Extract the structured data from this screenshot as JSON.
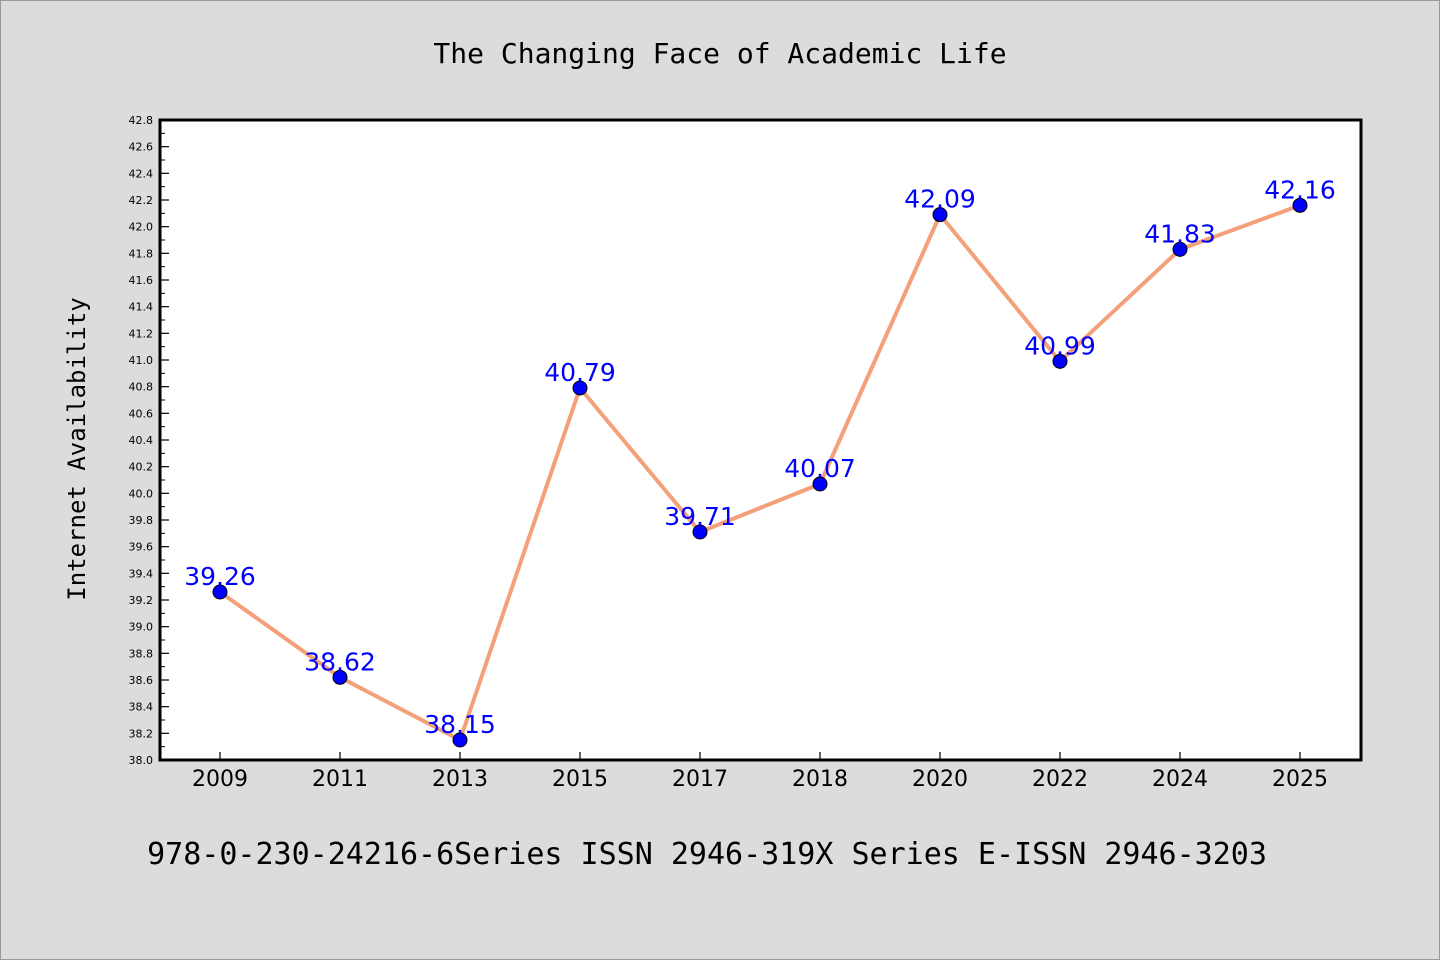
{
  "chart_data": {
    "type": "line",
    "title": "The Changing Face of Academic Life",
    "xlabel": "",
    "ylabel": "Internet Availability",
    "categories": [
      "2009",
      "2011",
      "2013",
      "2015",
      "2017",
      "2018",
      "2020",
      "2022",
      "2024",
      "2025"
    ],
    "series": [
      {
        "values": [
          39.26,
          38.62,
          38.15,
          40.79,
          39.71,
          40.07,
          42.09,
          40.99,
          41.83,
          42.16
        ],
        "labels": [
          "39.26",
          "38.62",
          "38.15",
          "40.79",
          "39.71",
          "40.07",
          "42.09",
          "40.99",
          "41.83",
          "42.16"
        ]
      }
    ],
    "ylim": [
      38.0,
      42.8
    ],
    "yticks": [
      "38.0",
      "38.2",
      "38.4",
      "38.6",
      "38.8",
      "39.0",
      "39.2",
      "39.4",
      "39.6",
      "39.8",
      "40.0",
      "40.2",
      "40.4",
      "40.6",
      "40.8",
      "41.0",
      "41.2",
      "41.4",
      "41.6",
      "41.8",
      "42.0",
      "42.2",
      "42.4",
      "42.6",
      "42.8"
    ],
    "grid": false,
    "legend": "none",
    "colors": {
      "line": "#f4a07a",
      "marker": "#0000ff",
      "label": "#0000ff",
      "background": "#dcdcdc",
      "plot_background": "#ffffff"
    }
  },
  "footer": "978-0-230-24216-6Series ISSN 2946-319X Series E-ISSN 2946-3203"
}
